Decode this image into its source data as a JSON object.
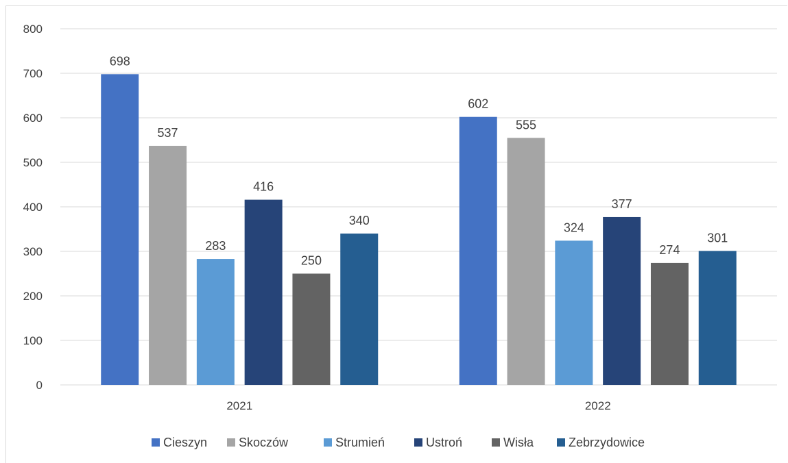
{
  "chart_data": {
    "type": "bar",
    "title": "",
    "xlabel": "",
    "ylabel": "",
    "categories": [
      "2021",
      "2022"
    ],
    "ylim": [
      0,
      800
    ],
    "yticks": [
      0,
      100,
      200,
      300,
      400,
      500,
      600,
      700,
      800
    ],
    "grid": true,
    "legend_position": "bottom",
    "series": [
      {
        "name": "Cieszyn",
        "color": "#4472C4",
        "values": [
          698,
          602
        ]
      },
      {
        "name": "Skoczów",
        "color": "#A5A5A5",
        "values": [
          537,
          555
        ]
      },
      {
        "name": "Strumień",
        "color": "#5B9BD5",
        "values": [
          283,
          324
        ]
      },
      {
        "name": "Ustroń",
        "color": "#264478",
        "values": [
          416,
          377
        ]
      },
      {
        "name": "Wisła",
        "color": "#636363",
        "values": [
          250,
          274
        ]
      },
      {
        "name": "Zebrzydowice",
        "color": "#255E91",
        "values": [
          340,
          301
        ]
      }
    ]
  }
}
